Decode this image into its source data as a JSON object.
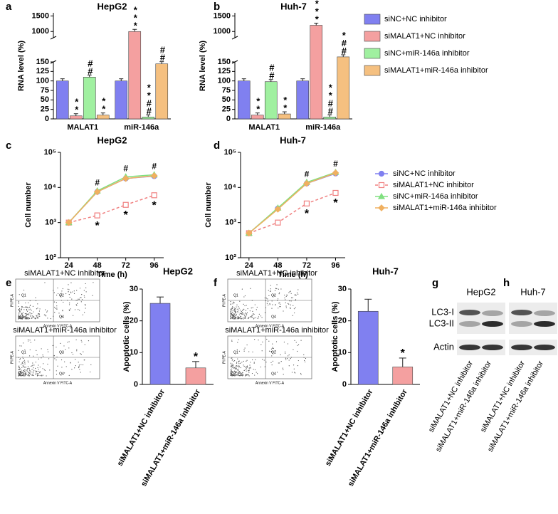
{
  "chart_data": [
    {
      "type": "bar",
      "title": "HepG2",
      "y_label": "RNA level (%)",
      "categories": [
        "MALAT1",
        "miR-146a"
      ],
      "series": [
        {
          "color": "#8080f0",
          "values": [
            100,
            100
          ],
          "annotations": [
            null,
            null
          ]
        },
        {
          "color": "#f4a0a0",
          "values": [
            8,
            1000
          ],
          "annotations": [
            "**",
            "***"
          ]
        },
        {
          "color": "#a0f0a0",
          "values": [
            110,
            5
          ],
          "annotations": [
            "##",
            "**##"
          ]
        },
        {
          "color": "#f5c080",
          "values": [
            10,
            145
          ],
          "annotations": [
            "**",
            "##"
          ]
        }
      ],
      "ylim": [
        0,
        1600
      ],
      "y_break": [
        150,
        800
      ],
      "yticks": [
        0,
        25,
        50,
        75,
        100,
        125,
        150,
        1000,
        1500
      ]
    },
    {
      "type": "bar",
      "title": "Huh-7",
      "y_label": "RNA level (%)",
      "categories": [
        "MALAT1",
        "miR-146a"
      ],
      "series": [
        {
          "name": "siNC+NC inhibitor",
          "color": "#8080f0",
          "values": [
            100,
            100
          ],
          "annotations": [
            null,
            null
          ]
        },
        {
          "name": "siMALAT1+NC inhibitor",
          "color": "#f4a0a0",
          "values": [
            10,
            1200
          ],
          "annotations": [
            "**",
            "***"
          ]
        },
        {
          "name": "siNC+miR-146a inhibitor",
          "color": "#a0f0a0",
          "values": [
            98,
            5
          ],
          "annotations": [
            "##",
            "**##"
          ]
        },
        {
          "name": "siMALAT1+miR-146a inhibitor",
          "color": "#f5c080",
          "values": [
            13,
            185
          ],
          "annotations": [
            "**",
            "*##"
          ]
        }
      ],
      "ylim": [
        0,
        1600
      ],
      "y_break": [
        150,
        800
      ],
      "yticks": [
        0,
        25,
        50,
        75,
        100,
        125,
        150,
        1000,
        1500
      ]
    },
    {
      "type": "line",
      "title": "HepG2",
      "x_label": "Time (h)",
      "y_label": "Cell number",
      "x": [
        24,
        48,
        72,
        96
      ],
      "series": [
        {
          "color": "#8080f0",
          "marker": "circle",
          "dash": false,
          "values": [
            1000,
            7500,
            18000,
            21000
          ]
        },
        {
          "color": "#f08080",
          "marker": "square",
          "dash": true,
          "values": [
            1000,
            1600,
            3200,
            6000
          ]
        },
        {
          "color": "#80e080",
          "marker": "triangle",
          "dash": false,
          "values": [
            1000,
            8000,
            20000,
            23000
          ]
        },
        {
          "color": "#f0b060",
          "marker": "diamond",
          "dash": false,
          "values": [
            1000,
            7500,
            18000,
            21500
          ]
        }
      ],
      "above_labels": [
        null,
        "#",
        "#",
        "#"
      ],
      "below_labels": [
        null,
        "*",
        "*",
        "*"
      ],
      "xlim": [
        17,
        104
      ],
      "xticks": [
        24,
        48,
        72,
        96
      ],
      "log_y": true,
      "ylim": [
        100,
        100000
      ],
      "yticks": [
        {
          "value": 100,
          "label": "10²"
        },
        {
          "value": 1000,
          "label": "10³"
        },
        {
          "value": 10000,
          "label": "10⁴"
        },
        {
          "value": 100000,
          "label": "10⁵"
        }
      ]
    },
    {
      "type": "line",
      "title": "Huh-7",
      "x_label": "Time (h)",
      "y_label": "Cell number",
      "x": [
        24,
        48,
        72,
        96
      ],
      "series": [
        {
          "name": "siNC+NC inhibitor",
          "color": "#8080f0",
          "marker": "circle",
          "dash": false,
          "values": [
            500,
            2500,
            13000,
            25000
          ]
        },
        {
          "name": "siMALAT1+NC inhibitor",
          "color": "#f08080",
          "marker": "square",
          "dash": true,
          "values": [
            500,
            1000,
            3500,
            7000
          ]
        },
        {
          "name": "siNC+miR-146a inhibitor",
          "color": "#80e080",
          "marker": "triangle",
          "dash": false,
          "values": [
            500,
            2600,
            14000,
            27000
          ]
        },
        {
          "name": "siMALAT1+miR-146a inhibitor",
          "color": "#f0b060",
          "marker": "diamond",
          "dash": false,
          "values": [
            500,
            2400,
            13000,
            26000
          ]
        }
      ],
      "above_labels": [
        null,
        null,
        "#",
        "#"
      ],
      "below_labels": [
        null,
        null,
        "*",
        "*"
      ],
      "xlim": [
        17,
        104
      ],
      "xticks": [
        24,
        48,
        72,
        96
      ],
      "log_y": true,
      "ylim": [
        100,
        100000
      ],
      "yticks": [
        {
          "value": 100,
          "label": "10²"
        },
        {
          "value": 1000,
          "label": "10³"
        },
        {
          "value": 10000,
          "label": "10⁴"
        },
        {
          "value": 100000,
          "label": "10⁵"
        }
      ]
    },
    {
      "type": "bar",
      "title": "HepG2",
      "y_label": "Apoptotic cells (%)",
      "categories": [
        "siMALAT1+NC inhibitor",
        "siMALAT1+miR-146a inhibitor"
      ],
      "values": [
        25.5,
        5.2
      ],
      "errors": [
        2,
        2
      ],
      "colors": [
        "#8080f0",
        "#f4a0a0"
      ],
      "annotations": [
        null,
        "*"
      ],
      "ylim": [
        0,
        30
      ],
      "yticks": [
        0,
        10,
        20,
        30
      ]
    },
    {
      "type": "bar",
      "title": "Huh-7",
      "y_label": "Apoptotic cells (%)",
      "categories": [
        "siMALAT1+NC inhibitor",
        "siMALAT1+miR-146a inhibitor"
      ],
      "values": [
        23,
        5.5
      ],
      "errors": [
        3.8,
        2.8
      ],
      "colors": [
        "#8080f0",
        "#f4a0a0"
      ],
      "annotations": [
        null,
        "*"
      ],
      "ylim": [
        0,
        30
      ],
      "yticks": [
        0,
        10,
        20,
        30
      ]
    }
  ],
  "panel_letters": [
    "a",
    "b",
    "c",
    "d",
    "e",
    "f",
    "g",
    "h"
  ],
  "flow": {
    "conditions": [
      "siMALAT1+NC inhibitor",
      "siMALAT1+miR-146a inhibitor"
    ],
    "quadrants": [
      "Q1",
      "Q2",
      "Q4"
    ],
    "x_label": "Annexin V FITC-A",
    "y_label": "PI PE-A"
  },
  "blots": {
    "titles": [
      "HepG2",
      "Huh-7"
    ],
    "bands": [
      "LC3-I",
      "LC3-II",
      "Actin"
    ],
    "lanes": [
      "siMALAT1+NC inhibitor",
      "siMALAT1+miR-146a inhibitor"
    ]
  }
}
